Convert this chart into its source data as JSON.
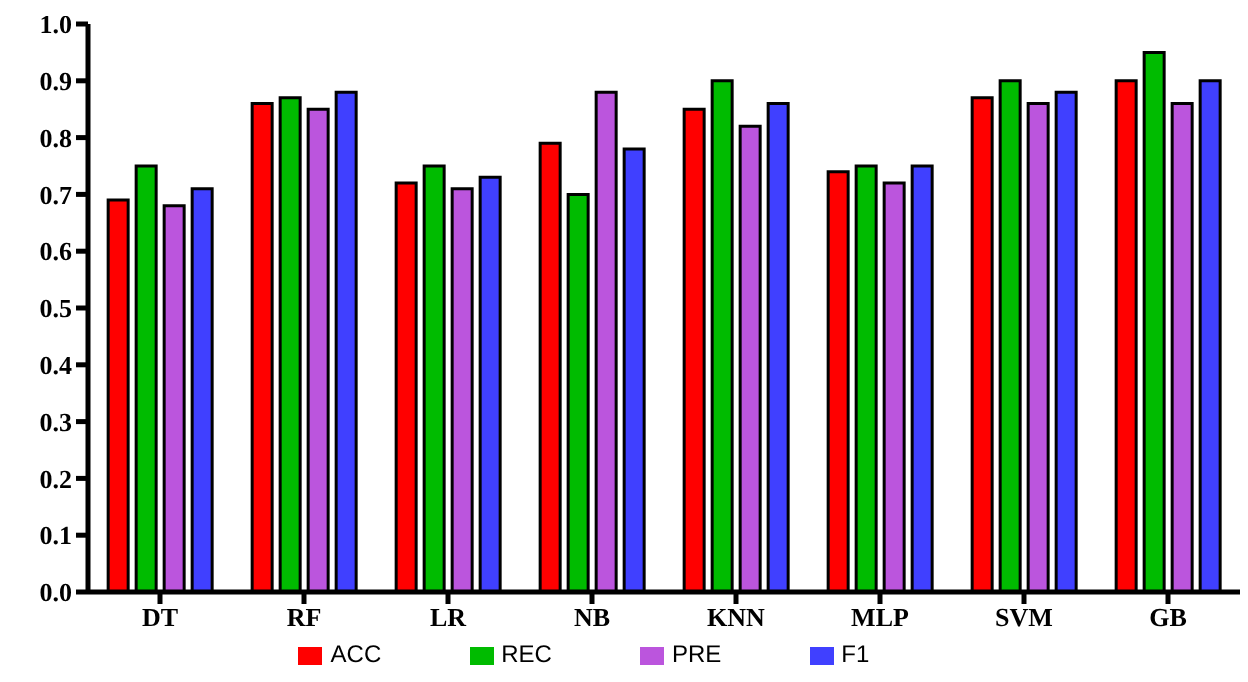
{
  "chart_data": {
    "type": "bar",
    "categories": [
      "DT",
      "RF",
      "LR",
      "NB",
      "KNN",
      "MLP",
      "SVM",
      "GB"
    ],
    "series": [
      {
        "name": "ACC",
        "color": "#ff0000",
        "values": [
          0.69,
          0.86,
          0.72,
          0.79,
          0.85,
          0.74,
          0.87,
          0.9
        ]
      },
      {
        "name": "REC",
        "color": "#00bb00",
        "values": [
          0.75,
          0.87,
          0.75,
          0.7,
          0.9,
          0.75,
          0.9,
          0.95
        ]
      },
      {
        "name": "PRE",
        "color": "#bb55dd",
        "values": [
          0.68,
          0.85,
          0.71,
          0.88,
          0.82,
          0.72,
          0.86,
          0.86
        ]
      },
      {
        "name": "F1",
        "color": "#4040ff",
        "values": [
          0.71,
          0.88,
          0.73,
          0.78,
          0.86,
          0.75,
          0.88,
          0.9
        ]
      }
    ],
    "ylim": [
      0,
      1
    ],
    "yticks": [
      {
        "value": 0,
        "label": "0.0"
      },
      0.1,
      0.2,
      0.3,
      0.4,
      0.5,
      0.6,
      0.7,
      0.8,
      0.9,
      {
        "value": 1,
        "label": "1.0"
      }
    ],
    "grid": false,
    "legend": "bottom"
  }
}
